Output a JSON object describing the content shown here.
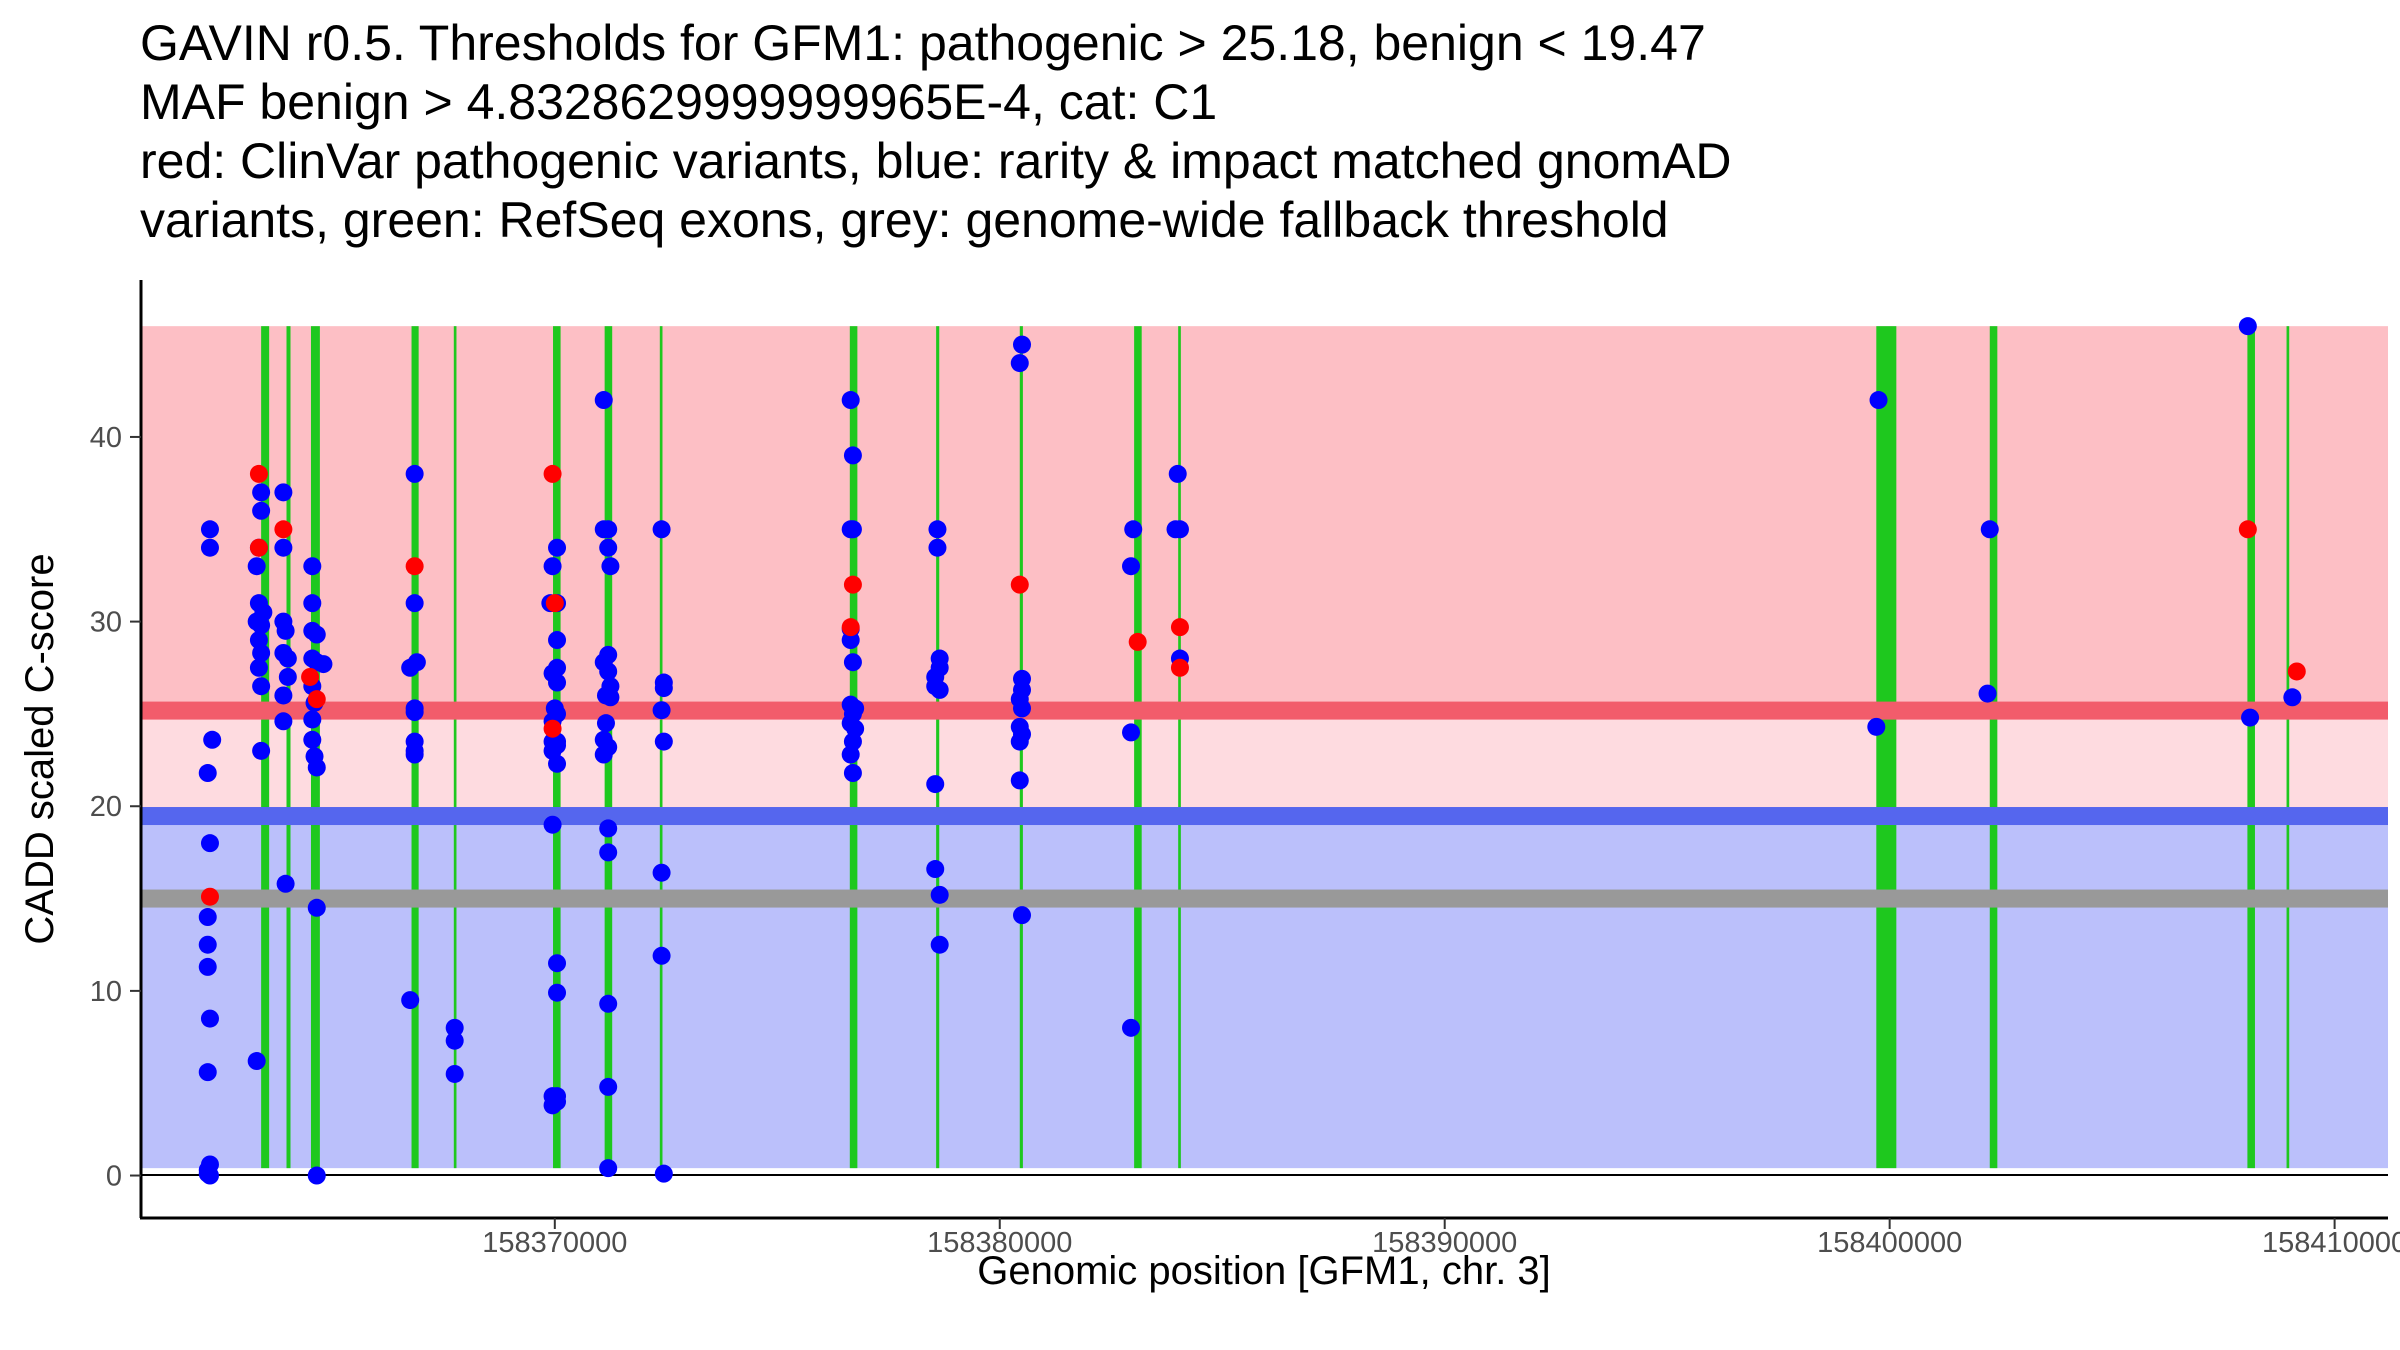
{
  "title_lines": [
    "GAVIN r0.5. Thresholds for GFM1: pathogenic > 25.18, benign < 19.47",
    "MAF benign > 4.8328629999999965E-4, cat: C1",
    "red: ClinVar pathogenic variants, blue: rarity & impact matched gnomAD",
    "variants, green: RefSeq exons, grey: genome-wide fallback threshold"
  ],
  "colors": {
    "pathogenic_zone": "#fdbfc5",
    "gray_zone": "#fedbe0",
    "benign_zone": "#bbc0fb",
    "pathogenic_line": "#f25c6b",
    "benign_line": "#5566ee",
    "fallback_line": "#999999",
    "exon": "#1ec81e",
    "clinvar": "#ff0000",
    "gnomad": "#0000ff"
  },
  "chart_data": {
    "type": "scatter",
    "title": "GAVIN r0.5. Thresholds for GFM1: pathogenic > 25.18, benign < 19.47",
    "xlabel": "Genomic position [GFM1, chr. 3]",
    "ylabel": "CADD scaled C-score",
    "xlim": [
      158360700,
      158411200
    ],
    "ylim": [
      -2.3,
      48.5
    ],
    "x_ticks": [
      158370000,
      158380000,
      158390000,
      158400000,
      158410000
    ],
    "x_tick_labels": [
      "158370000",
      "158380000",
      "158390000",
      "158400000",
      "158410000"
    ],
    "y_ticks": [
      0,
      10,
      20,
      30,
      40
    ],
    "y_tick_labels": [
      "0",
      "10",
      "20",
      "30",
      "40"
    ],
    "thresholds": {
      "pathogenic": 25.18,
      "benign": 19.47,
      "fallback": 15.0,
      "zone_top": 46.0,
      "zone_bottom": 0.4
    },
    "exons": [
      {
        "start": 158363400,
        "end": 158363580
      },
      {
        "start": 158363970,
        "end": 158364060
      },
      {
        "start": 158364520,
        "end": 158364720
      },
      {
        "start": 158366780,
        "end": 158366940
      },
      {
        "start": 158367730,
        "end": 158367790
      },
      {
        "start": 158369960,
        "end": 158370130
      },
      {
        "start": 158371120,
        "end": 158371290
      },
      {
        "start": 158372360,
        "end": 158372420
      },
      {
        "start": 158376630,
        "end": 158376800
      },
      {
        "start": 158378570,
        "end": 158378640
      },
      {
        "start": 158380450,
        "end": 158380520
      },
      {
        "start": 158383020,
        "end": 158383190
      },
      {
        "start": 158384010,
        "end": 158384070
      },
      {
        "start": 158399700,
        "end": 158400150
      },
      {
        "start": 158402250,
        "end": 158402420
      },
      {
        "start": 158408040,
        "end": 158408210
      },
      {
        "start": 158408920,
        "end": 158408980
      }
    ],
    "series": [
      {
        "name": "gnomAD matched variants",
        "color": "#0000ff",
        "points": [
          [
            158362250,
            35
          ],
          [
            158362250,
            34
          ],
          [
            158362300,
            23.6
          ],
          [
            158362200,
            21.8
          ],
          [
            158362250,
            18
          ],
          [
            158362200,
            14
          ],
          [
            158362200,
            12.5
          ],
          [
            158362200,
            11.3
          ],
          [
            158362250,
            8.5
          ],
          [
            158362200,
            5.6
          ],
          [
            158362250,
            0.6
          ],
          [
            158362200,
            0.1
          ],
          [
            158362250,
            0
          ],
          [
            158362200,
            0.3
          ],
          [
            158363400,
            37
          ],
          [
            158363400,
            36
          ],
          [
            158363300,
            33
          ],
          [
            158363350,
            31
          ],
          [
            158363400,
            29.8
          ],
          [
            158363350,
            29
          ],
          [
            158363400,
            28.3
          ],
          [
            158363350,
            27.5
          ],
          [
            158363400,
            26.5
          ],
          [
            158363400,
            23
          ],
          [
            158363300,
            6.2
          ],
          [
            158363350,
            34
          ],
          [
            158363300,
            30
          ],
          [
            158363450,
            30.5
          ],
          [
            158363900,
            37
          ],
          [
            158363900,
            34
          ],
          [
            158363900,
            30
          ],
          [
            158363950,
            29.5
          ],
          [
            158363900,
            28.3
          ],
          [
            158364000,
            28
          ],
          [
            158364000,
            27
          ],
          [
            158363900,
            26
          ],
          [
            158363900,
            24.6
          ],
          [
            158363950,
            15.8
          ],
          [
            158364550,
            33
          ],
          [
            158364550,
            31
          ],
          [
            158364550,
            29.5
          ],
          [
            158364650,
            29.3
          ],
          [
            158364550,
            28
          ],
          [
            158364650,
            27.8
          ],
          [
            158364800,
            27.7
          ],
          [
            158364550,
            26.5
          ],
          [
            158364600,
            25.6
          ],
          [
            158364550,
            24.7
          ],
          [
            158364550,
            23.6
          ],
          [
            158364600,
            22.7
          ],
          [
            158364650,
            22.1
          ],
          [
            158364650,
            14.5
          ],
          [
            158364650,
            0
          ],
          [
            158366850,
            38
          ],
          [
            158366750,
            27.5
          ],
          [
            158366900,
            27.8
          ],
          [
            158366850,
            25.3
          ],
          [
            158366850,
            25.1
          ],
          [
            158366850,
            23.5
          ],
          [
            158366850,
            23
          ],
          [
            158366850,
            22.8
          ],
          [
            158366750,
            9.5
          ],
          [
            158366850,
            31
          ],
          [
            158367750,
            8
          ],
          [
            158367750,
            7.3
          ],
          [
            158367750,
            5.5
          ],
          [
            158369900,
            31
          ],
          [
            158370050,
            34
          ],
          [
            158369950,
            33
          ],
          [
            158370050,
            31
          ],
          [
            158370050,
            29
          ],
          [
            158370050,
            27.5
          ],
          [
            158369950,
            27.2
          ],
          [
            158370050,
            26.7
          ],
          [
            158370000,
            25.3
          ],
          [
            158370050,
            25
          ],
          [
            158369950,
            24.6
          ],
          [
            158369950,
            23.5
          ],
          [
            158370050,
            23.5
          ],
          [
            158369950,
            23
          ],
          [
            158370050,
            23.3
          ],
          [
            158370050,
            22.3
          ],
          [
            158369950,
            19
          ],
          [
            158370050,
            11.5
          ],
          [
            158370050,
            9.9
          ],
          [
            158369950,
            4.3
          ],
          [
            158370050,
            4.3
          ],
          [
            158369950,
            3.8
          ],
          [
            158370050,
            4
          ],
          [
            158371100,
            42
          ],
          [
            158371100,
            35
          ],
          [
            158371200,
            35
          ],
          [
            158371200,
            34
          ],
          [
            158371250,
            33
          ],
          [
            158371200,
            28.2
          ],
          [
            158371100,
            27.8
          ],
          [
            158371200,
            27.3
          ],
          [
            158371250,
            26.5
          ],
          [
            158371150,
            26
          ],
          [
            158371250,
            25.9
          ],
          [
            158371150,
            24.5
          ],
          [
            158371100,
            23.6
          ],
          [
            158371200,
            23.2
          ],
          [
            158371100,
            22.8
          ],
          [
            158371200,
            18.8
          ],
          [
            158371200,
            17.5
          ],
          [
            158371200,
            9.3
          ],
          [
            158371200,
            4.8
          ],
          [
            158371200,
            0.4
          ],
          [
            158372400,
            35
          ],
          [
            158372450,
            26.7
          ],
          [
            158372450,
            26.4
          ],
          [
            158372400,
            25.2
          ],
          [
            158372450,
            23.5
          ],
          [
            158372400,
            16.4
          ],
          [
            158372400,
            11.9
          ],
          [
            158372450,
            0.1
          ],
          [
            158376650,
            42
          ],
          [
            158376700,
            39
          ],
          [
            158376650,
            35
          ],
          [
            158376700,
            35
          ],
          [
            158376650,
            29.6
          ],
          [
            158376650,
            29
          ],
          [
            158376700,
            27.8
          ],
          [
            158376650,
            25.5
          ],
          [
            158376750,
            25.3
          ],
          [
            158376700,
            25
          ],
          [
            158376650,
            24.5
          ],
          [
            158376750,
            24.2
          ],
          [
            158376700,
            23.5
          ],
          [
            158376650,
            22.8
          ],
          [
            158376700,
            21.8
          ],
          [
            158378600,
            35
          ],
          [
            158378600,
            34
          ],
          [
            158378650,
            28
          ],
          [
            158378650,
            27.5
          ],
          [
            158378550,
            27
          ],
          [
            158378550,
            26.5
          ],
          [
            158378650,
            26.3
          ],
          [
            158378550,
            21.2
          ],
          [
            158378550,
            16.6
          ],
          [
            158378650,
            15.2
          ],
          [
            158378650,
            12.5
          ],
          [
            158380500,
            45
          ],
          [
            158380450,
            44
          ],
          [
            158380500,
            26.9
          ],
          [
            158380500,
            26.3
          ],
          [
            158380450,
            25.8
          ],
          [
            158380500,
            25.3
          ],
          [
            158380450,
            24.3
          ],
          [
            158380500,
            23.9
          ],
          [
            158380450,
            23.5
          ],
          [
            158380450,
            21.4
          ],
          [
            158380500,
            14.1
          ],
          [
            158383000,
            35
          ],
          [
            158382950,
            33
          ],
          [
            158382950,
            24
          ],
          [
            158382950,
            8
          ],
          [
            158384000,
            38
          ],
          [
            158383950,
            35
          ],
          [
            158384050,
            35
          ],
          [
            158384050,
            28
          ],
          [
            158399750,
            42
          ],
          [
            158399700,
            24.3
          ],
          [
            158402250,
            35
          ],
          [
            158402200,
            26.1
          ],
          [
            158408050,
            46
          ],
          [
            158408100,
            24.8
          ],
          [
            158409050,
            25.9
          ]
        ]
      },
      {
        "name": "ClinVar pathogenic variants",
        "color": "#ff0000",
        "points": [
          [
            158362250,
            15.1
          ],
          [
            158363350,
            38
          ],
          [
            158363350,
            34
          ],
          [
            158363900,
            35
          ],
          [
            158364500,
            27
          ],
          [
            158364650,
            25.8
          ],
          [
            158366850,
            33
          ],
          [
            158369950,
            38
          ],
          [
            158370000,
            31
          ],
          [
            158369950,
            24.2
          ],
          [
            158376700,
            32
          ],
          [
            158376650,
            29.7
          ],
          [
            158380450,
            32
          ],
          [
            158383100,
            28.9
          ],
          [
            158384050,
            29.7
          ],
          [
            158384050,
            27.5
          ],
          [
            158408050,
            35
          ],
          [
            158409150,
            27.3
          ]
        ]
      }
    ]
  }
}
